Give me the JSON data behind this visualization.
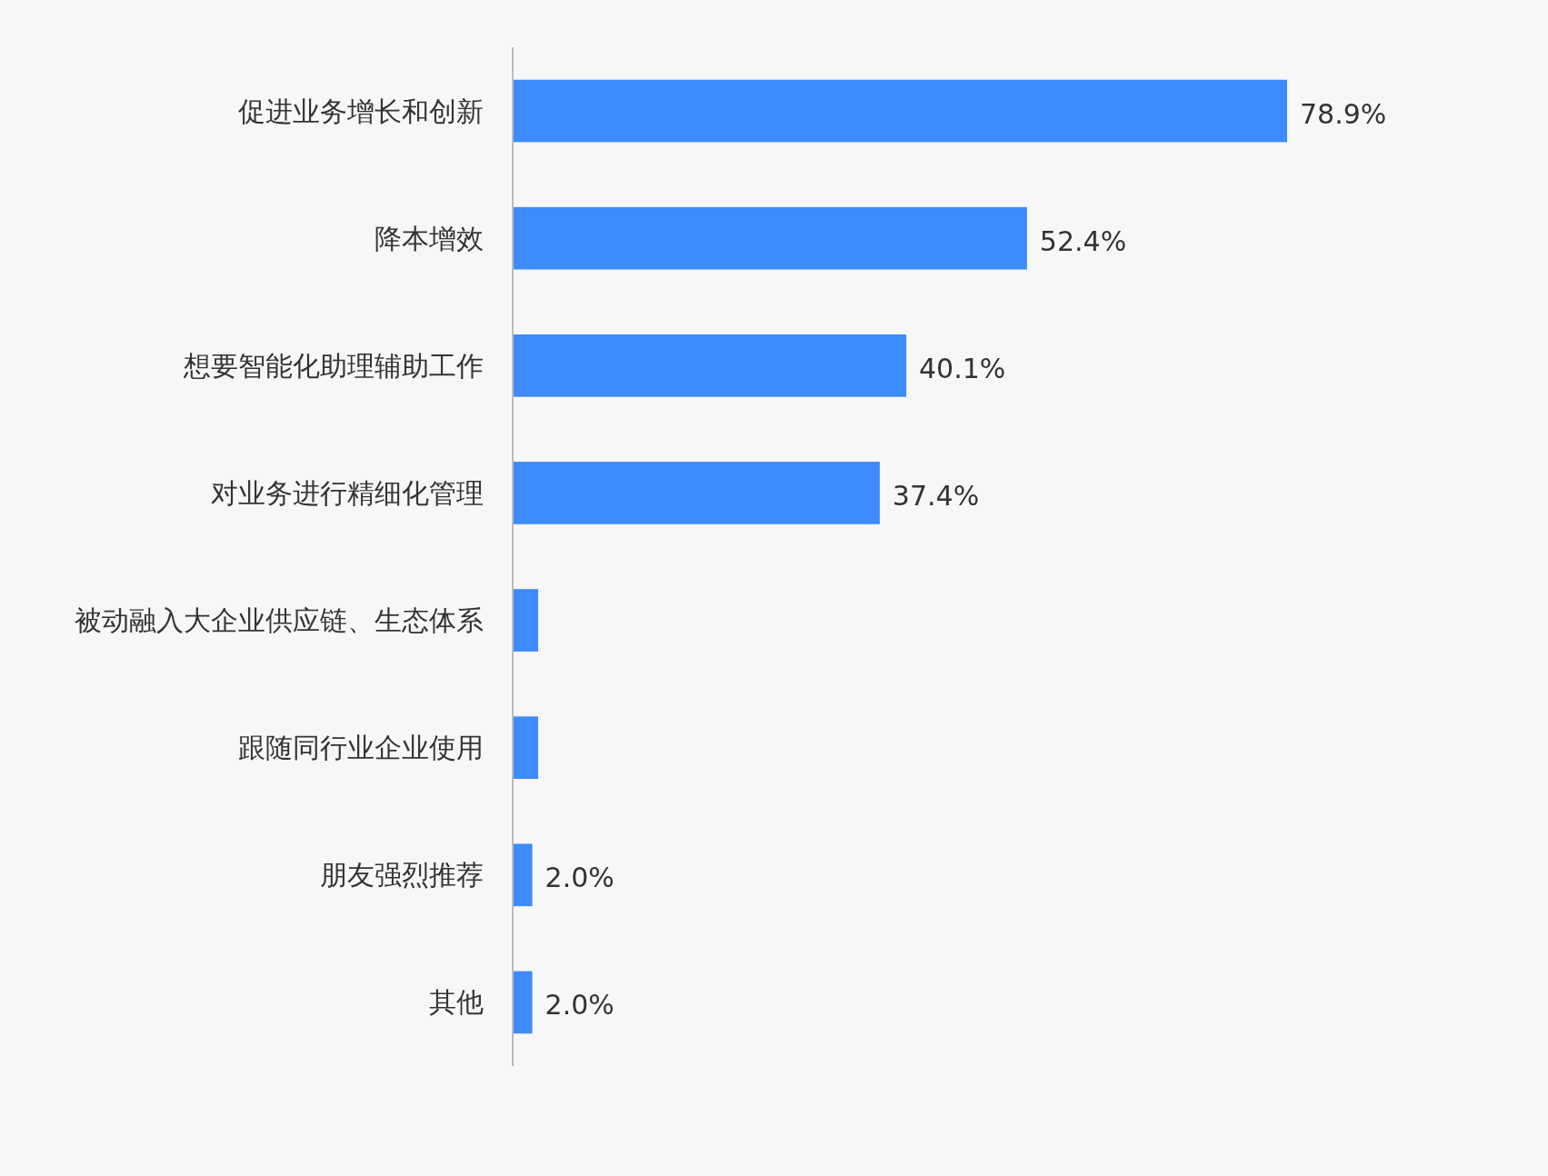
{
  "chart_data": {
    "type": "bar",
    "orientation": "horizontal",
    "color": "#3d8bfd",
    "categories": [
      "促进业务增长和创新",
      "降本增效",
      "想要智能化助理辅助工作",
      "对业务进行精细化管理",
      "被动融入大企业供应链、生态体系",
      "跟随同行业企业使用",
      "朋友强烈推荐",
      "其他"
    ],
    "values": [
      78.9,
      52.4,
      40.1,
      37.4,
      2.6,
      2.6,
      2.0,
      2.0
    ],
    "value_labels": [
      "78.9%",
      "52.4%",
      "40.1%",
      "37.4%",
      null,
      null,
      "2.0%",
      "2.0%"
    ]
  }
}
